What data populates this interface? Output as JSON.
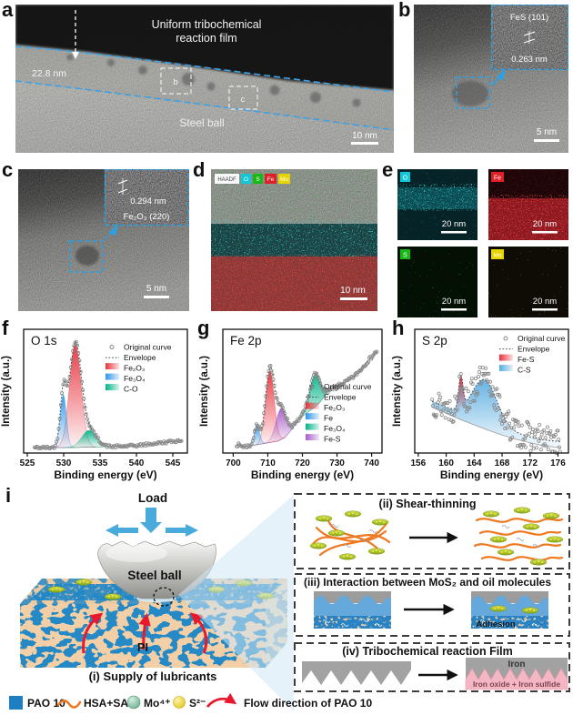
{
  "panel_labels": {
    "a": "a",
    "b": "b",
    "c": "c",
    "d": "d",
    "e": "e",
    "f": "f",
    "g": "g",
    "h": "h",
    "i": "i"
  },
  "panels": {
    "a": {
      "film_title_1": "Uniform tribochemical",
      "film_title_2": "reaction film",
      "thickness": "22.8 nm",
      "substrate": "Steel ball",
      "roi_b": "b",
      "roi_c": "c",
      "scalebar": "10 nm"
    },
    "b": {
      "inset_phase": "FeS (101)",
      "inset_spacing": "0.263 nm",
      "scalebar": "5 nm"
    },
    "c": {
      "inset_spacing": "0.294 nm",
      "inset_phase": "Fe₂O₃ (220)",
      "scalebar": "5 nm"
    },
    "d": {
      "tags": [
        "HAADF",
        "O",
        "S",
        "Fe",
        "Mo"
      ],
      "scalebar": "10 nm"
    },
    "e": {
      "maps": [
        {
          "element": "O",
          "scalebar": "20 nm",
          "color": "#10c8d8"
        },
        {
          "element": "Fe",
          "scalebar": "20 nm",
          "color": "#e02028"
        },
        {
          "element": "S",
          "scalebar": "20 nm",
          "color": "#18b818"
        },
        {
          "element": "Mo",
          "scalebar": "20 nm",
          "color": "#e8d400"
        }
      ]
    }
  },
  "chart_data": [
    {
      "id": "O1s",
      "type": "area",
      "title": "O 1s",
      "xlabel": "Binding energy (eV)",
      "ylabel": "Intensity (a.u.)",
      "xlim": [
        524.5,
        547
      ],
      "xticks": [
        525,
        530,
        535,
        540,
        545
      ],
      "data_range": [
        526,
        546.2
      ],
      "baseline": {
        "x": [
          526,
          528,
          530,
          532,
          534,
          536,
          538,
          540,
          542,
          544,
          546.2
        ],
        "y": [
          0.045,
          0.045,
          0.045,
          0.047,
          0.05,
          0.052,
          0.055,
          0.062,
          0.075,
          0.09,
          0.105
        ]
      },
      "peaks": [
        {
          "name": "Fe₂O₃",
          "color": "#e8323c",
          "center": 531.6,
          "amp": 0.86,
          "sigma": 0.8
        },
        {
          "name": "Fe₃O₄",
          "color": "#2f96e8",
          "center": 529.95,
          "amp": 0.44,
          "sigma": 0.42
        },
        {
          "name": "C-O",
          "color": "#00b487",
          "center": 533.5,
          "amp": 0.14,
          "sigma": 1.0
        }
      ],
      "legend": [
        {
          "label": "Original curve",
          "marker": "scatter"
        },
        {
          "label": "Envelope",
          "marker": "dashed"
        },
        {
          "label": "Fe₂O₃",
          "marker": "fill",
          "color": "#e8323c"
        },
        {
          "label": "Fe₃O₄",
          "marker": "fill",
          "color": "#2f96e8"
        },
        {
          "label": "C-O",
          "marker": "fill",
          "color": "#00b487"
        }
      ],
      "noise": 0.012,
      "points": 135,
      "seed": 42
    },
    {
      "id": "Fe2p",
      "type": "area",
      "title": "Fe 2p",
      "xlabel": "Binding energy (eV)",
      "ylabel": "Intensity (a.u.)",
      "xlim": [
        697,
        743
      ],
      "xticks": [
        700,
        710,
        720,
        730,
        740
      ],
      "data_range": [
        701,
        741.5
      ],
      "baseline": {
        "x": [
          701,
          703,
          705,
          707,
          709,
          711,
          713,
          715,
          717,
          719,
          721,
          723,
          725,
          727,
          729,
          731,
          733,
          735,
          737,
          739,
          741.5
        ],
        "y": [
          0.07,
          0.055,
          0.06,
          0.07,
          0.08,
          0.09,
          0.1,
          0.13,
          0.2,
          0.28,
          0.33,
          0.37,
          0.42,
          0.5,
          0.54,
          0.57,
          0.6,
          0.64,
          0.7,
          0.77,
          0.85
        ]
      },
      "peaks": [
        {
          "name": "Fe₂O₃",
          "color": "#e8323c",
          "center": 710.6,
          "amp": 0.6,
          "sigma": 1.25
        },
        {
          "name": "Fe",
          "color": "#2f96e8",
          "center": 706.9,
          "amp": 0.16,
          "sigma": 0.75
        },
        {
          "name": "Fe-S",
          "color": "#a85cc8",
          "center": 713.8,
          "amp": 0.26,
          "sigma": 1.5
        },
        {
          "name": "Fe₃O₄",
          "color": "#00b487",
          "center": 723.6,
          "amp": 0.27,
          "sigma": 1.5
        }
      ],
      "legend": [
        {
          "label": "Original curve",
          "marker": "scatter"
        },
        {
          "label": "Envelope",
          "marker": "dashed"
        },
        {
          "label": "Fe₂O₃",
          "marker": "fill",
          "color": "#e8323c"
        },
        {
          "label": "Fe",
          "marker": "fill",
          "color": "#2f96e8"
        },
        {
          "label": "Fe₃O₄",
          "marker": "fill",
          "color": "#00b487"
        },
        {
          "label": "Fe-S",
          "marker": "fill",
          "color": "#a85cc8"
        }
      ],
      "noise": 0.016,
      "points": 150,
      "seed": 7
    },
    {
      "id": "S2p",
      "type": "band",
      "title": "S 2p",
      "xlabel": "Binding energy (eV)",
      "ylabel": "Intensity (a.u.)",
      "xlim": [
        155.5,
        177.5
      ],
      "xticks": [
        156,
        160,
        164,
        168,
        172,
        176
      ],
      "data_range": [
        158,
        176.3
      ],
      "baseline": {
        "x": [
          158,
          160,
          162,
          164,
          166,
          168,
          170,
          172,
          174,
          176.3
        ],
        "y": [
          0.38,
          0.33,
          0.28,
          0.235,
          0.19,
          0.15,
          0.115,
          0.085,
          0.06,
          0.045
        ]
      },
      "band_offset": 0.05,
      "peaks": [
        {
          "name": "Fe-S",
          "color": "#e8323c",
          "center": 162.1,
          "amp": 0.27,
          "sigma": 0.3
        },
        {
          "name": "C-S",
          "color": "#55aae0",
          "center": 165.5,
          "amp": 0.36,
          "sigma": 1.75
        }
      ],
      "legend": [
        {
          "label": "Original curve",
          "marker": "scatter"
        },
        {
          "label": "Envelope",
          "marker": "dashed"
        },
        {
          "label": "Fe-S",
          "marker": "fill",
          "color": "#e8323c"
        },
        {
          "label": "C-S",
          "marker": "fill",
          "color": "#55aae0"
        }
      ],
      "noise": 0.12,
      "points": 175,
      "seed": 13
    }
  ],
  "schematic": {
    "load": "Load",
    "ball": "Steel ball",
    "pi": "PI",
    "caption": "(i) Supply of lubricants",
    "box2_title": "(ii)  Shear-thinning",
    "box3_title": "(iii) Interaction between MoS₂ and oil molecules",
    "adhesion": "Adhesion",
    "box4_title": "(iv) Tribochemical reaction Film",
    "iron": "Iron",
    "iron_layer": "Iron oxide + Iron sulfide"
  },
  "legend": {
    "pao": {
      "label": "PAO 10",
      "color": "#1d7fc2"
    },
    "hsa": {
      "label": "HSA+SA",
      "color": "#f07820"
    },
    "mo": {
      "label": "Mo⁴⁺",
      "color": "#6fb394"
    },
    "s": {
      "label": "S²⁻",
      "color": "#e8cc10"
    },
    "flow": {
      "label": "Flow direction of PAO 10",
      "color": "#e8192c"
    }
  }
}
